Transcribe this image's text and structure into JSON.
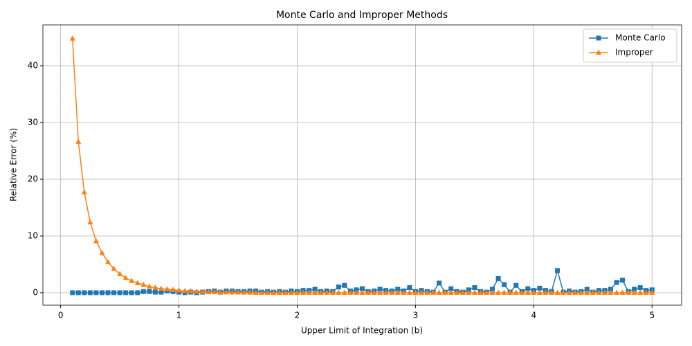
{
  "chart_data": {
    "type": "line",
    "title": "Monte Carlo and Improper Methods",
    "xlabel": "Upper Limit of Integration (b)",
    "ylabel": "Relative Error (%)",
    "x": [
      0.1,
      0.15,
      0.2,
      0.25,
      0.3,
      0.35,
      0.4,
      0.45,
      0.5,
      0.55,
      0.6,
      0.65,
      0.7,
      0.75,
      0.8,
      0.85,
      0.9,
      0.95,
      1.0,
      1.05,
      1.1,
      1.15,
      1.2,
      1.25,
      1.3,
      1.35,
      1.4,
      1.45,
      1.5,
      1.55,
      1.6,
      1.65,
      1.7,
      1.75,
      1.8,
      1.85,
      1.9,
      1.95,
      2.0,
      2.05,
      2.1,
      2.15,
      2.2,
      2.25,
      2.3,
      2.35,
      2.4,
      2.45,
      2.5,
      2.55,
      2.6,
      2.65,
      2.7,
      2.75,
      2.8,
      2.85,
      2.9,
      2.95,
      3.0,
      3.05,
      3.1,
      3.15,
      3.2,
      3.25,
      3.3,
      3.35,
      3.4,
      3.45,
      3.5,
      3.55,
      3.6,
      3.65,
      3.7,
      3.75,
      3.8,
      3.85,
      3.9,
      3.95,
      4.0,
      4.05,
      4.1,
      4.15,
      4.2,
      4.25,
      4.3,
      4.35,
      4.4,
      4.45,
      4.5,
      4.55,
      4.6,
      4.65,
      4.7,
      4.75,
      4.8,
      4.85,
      4.9,
      4.95,
      5.0
    ],
    "series": [
      {
        "name": "Monte Carlo",
        "color": "#1f77b4",
        "marker": "square",
        "values": [
          0,
          0,
          0,
          0,
          0,
          0,
          0,
          0,
          0,
          0,
          0,
          0,
          0.2,
          0.2,
          0.1,
          0.1,
          0.3,
          0.2,
          0.1,
          0.0,
          0.1,
          0.0,
          0.1,
          0.2,
          0.3,
          0.1,
          0.3,
          0.3,
          0.2,
          0.2,
          0.3,
          0.3,
          0.1,
          0.2,
          0.1,
          0.2,
          0.1,
          0.3,
          0.2,
          0.4,
          0.4,
          0.6,
          0.2,
          0.3,
          0.2,
          1.0,
          1.3,
          0.3,
          0.5,
          0.7,
          0.2,
          0.3,
          0.6,
          0.4,
          0.3,
          0.6,
          0.3,
          0.9,
          0.2,
          0.4,
          0.2,
          0.1,
          1.7,
          0.1,
          0.7,
          0.2,
          0.1,
          0.5,
          0.9,
          0.2,
          0.1,
          0.6,
          2.5,
          1.4,
          0.1,
          1.3,
          0.2,
          0.7,
          0.4,
          0.8,
          0.4,
          0.2,
          3.9,
          0.1,
          0.3,
          0.1,
          0.2,
          0.6,
          0.1,
          0.4,
          0.4,
          0.6,
          1.8,
          2.2,
          0.2,
          0.6,
          0.9,
          0.4,
          0.5
        ]
      },
      {
        "name": "Improper",
        "color": "#ff7f0e",
        "marker": "triangle",
        "values": [
          44.8,
          26.6,
          17.7,
          12.4,
          9.1,
          7.0,
          5.4,
          4.2,
          3.3,
          2.6,
          2.1,
          1.7,
          1.4,
          1.1,
          0.9,
          0.7,
          0.6,
          0.5,
          0.4,
          0.3,
          0.25,
          0.2,
          0.15,
          0.1,
          0.1,
          0.08,
          0.07,
          0.06,
          0.05,
          0.04,
          0.03,
          0,
          0,
          0,
          0,
          0,
          0,
          0,
          0,
          0,
          0,
          0,
          0,
          0,
          0,
          0,
          0,
          0,
          0,
          0,
          0,
          0,
          0,
          0,
          0,
          0,
          0,
          0,
          0,
          0,
          0,
          0,
          0,
          0,
          0,
          0,
          0,
          0,
          0,
          0,
          0,
          0,
          0,
          0,
          0,
          0,
          0,
          0,
          0,
          0,
          0,
          0,
          0,
          0,
          0,
          0,
          0,
          0,
          0,
          0,
          0,
          0,
          0,
          0,
          0,
          0,
          0,
          0,
          0
        ]
      }
    ],
    "xlim": [
      -0.15,
      5.25
    ],
    "ylim": [
      -2.2,
      47.2
    ],
    "xticks": [
      0,
      1,
      2,
      3,
      4,
      5
    ],
    "yticks": [
      0,
      10,
      20,
      30,
      40
    ],
    "grid": true,
    "legend": "upper right"
  }
}
